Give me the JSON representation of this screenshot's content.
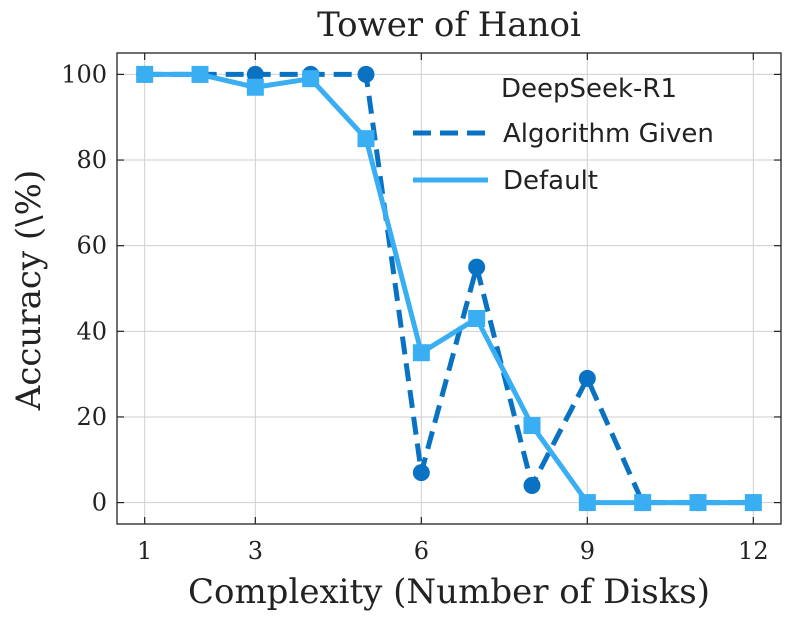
{
  "chart_data": {
    "type": "line",
    "title": "Tower of Hanoi",
    "xlabel": "Complexity (Number of Disks)",
    "ylabel": "Accuracy (\\%)",
    "xlim": [
      0.5,
      12.5
    ],
    "ylim": [
      -5,
      105
    ],
    "xticks": [
      1,
      3,
      6,
      9,
      12
    ],
    "yticks": [
      0,
      20,
      40,
      60,
      80,
      100
    ],
    "grid": true,
    "legend": {
      "title": "DeepSeek-R1",
      "position": "top-right"
    },
    "series": [
      {
        "name": "Algorithm Given",
        "color": "#0a72c2",
        "line": "dashed",
        "marker": "circle",
        "x": [
          1,
          2,
          3,
          4,
          5,
          6,
          7,
          8,
          9,
          10,
          11,
          12
        ],
        "y": [
          100,
          100,
          100,
          100,
          100,
          7,
          55,
          4,
          29,
          0,
          0,
          0
        ]
      },
      {
        "name": "Default",
        "color": "#3aaef2",
        "line": "solid",
        "marker": "square",
        "x": [
          1,
          2,
          3,
          4,
          5,
          6,
          7,
          8,
          9,
          10,
          11,
          12
        ],
        "y": [
          100,
          100,
          97,
          99,
          85,
          35,
          43,
          18,
          0,
          0,
          0,
          0
        ]
      }
    ]
  }
}
